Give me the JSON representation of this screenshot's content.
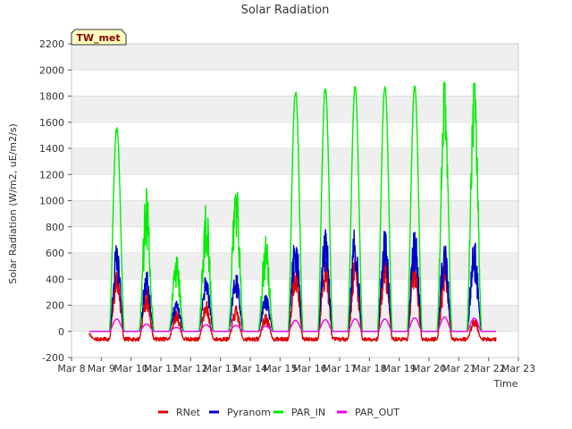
{
  "chart_data": {
    "type": "line",
    "title": "Solar Radiation",
    "xlabel": "Time",
    "ylabel": "Solar Radiation (W/m2, uE/m2/s)",
    "badge": "TW_met",
    "ylim": [
      -200,
      2200
    ],
    "xlim": [
      8,
      23
    ],
    "yticks": [
      -200,
      0,
      200,
      400,
      600,
      800,
      1000,
      1200,
      1400,
      1600,
      1800,
      2000,
      2200
    ],
    "xticks": [
      {
        "value": 8,
        "label": "Mar 8"
      },
      {
        "value": 9,
        "label": "Mar 9"
      },
      {
        "value": 10,
        "label": "Mar 10"
      },
      {
        "value": 11,
        "label": "Mar 11"
      },
      {
        "value": 12,
        "label": "Mar 12"
      },
      {
        "value": 13,
        "label": "Mar 13"
      },
      {
        "value": 14,
        "label": "Mar 14"
      },
      {
        "value": 15,
        "label": "Mar 15"
      },
      {
        "value": 16,
        "label": "Mar 16"
      },
      {
        "value": 17,
        "label": "Mar 17"
      },
      {
        "value": 18,
        "label": "Mar 18"
      },
      {
        "value": 19,
        "label": "Mar 19"
      },
      {
        "value": 20,
        "label": "Mar 20"
      },
      {
        "value": 21,
        "label": "Mar 21"
      },
      {
        "value": 22,
        "label": "Mar 22"
      },
      {
        "value": 23,
        "label": "Mar 23"
      }
    ],
    "grid": "horizontal bands",
    "legend_position": "bottom",
    "x_range": [
      8.6,
      22.25
    ],
    "series": [
      {
        "name": "RNet",
        "color": "#dd0000",
        "night": -60,
        "daily_peaks": [
          {
            "day": 9,
            "peak": 520
          },
          {
            "day": 10,
            "peak": 340
          },
          {
            "day": 11,
            "peak": 170
          },
          {
            "day": 12,
            "peak": 230
          },
          {
            "day": 13,
            "peak": 200
          },
          {
            "day": 14,
            "peak": 140
          },
          {
            "day": 15,
            "peak": 600
          },
          {
            "day": 16,
            "peak": 620
          },
          {
            "day": 17,
            "peak": 620
          },
          {
            "day": 18,
            "peak": 630
          },
          {
            "day": 19,
            "peak": 640
          },
          {
            "day": 20,
            "peak": 650
          },
          {
            "day": 21,
            "peak": 120
          },
          {
            "day": 22,
            "peak": 280
          }
        ]
      },
      {
        "name": "Pyranom",
        "color": "#0000cc",
        "night": 0,
        "daily_peaks": [
          {
            "day": 9,
            "peak": 680
          },
          {
            "day": 10,
            "peak": 470
          },
          {
            "day": 11,
            "peak": 240
          },
          {
            "day": 12,
            "peak": 430
          },
          {
            "day": 13,
            "peak": 470
          },
          {
            "day": 14,
            "peak": 300
          },
          {
            "day": 15,
            "peak": 810
          },
          {
            "day": 16,
            "peak": 810
          },
          {
            "day": 17,
            "peak": 815
          },
          {
            "day": 18,
            "peak": 815
          },
          {
            "day": 19,
            "peak": 820
          },
          {
            "day": 20,
            "peak": 825
          },
          {
            "day": 21,
            "peak": 820
          },
          {
            "day": 22,
            "peak": 900
          }
        ]
      },
      {
        "name": "PAR_IN",
        "color": "#00ee00",
        "night": 0,
        "daily_peaks": [
          {
            "day": 9,
            "peak": 1560
          },
          {
            "day": 10,
            "peak": 1130
          },
          {
            "day": 11,
            "peak": 600
          },
          {
            "day": 12,
            "peak": 990
          },
          {
            "day": 13,
            "peak": 1200
          },
          {
            "day": 14,
            "peak": 730
          },
          {
            "day": 15,
            "peak": 1850
          },
          {
            "day": 16,
            "peak": 1860
          },
          {
            "day": 17,
            "peak": 1875
          },
          {
            "day": 18,
            "peak": 1885
          },
          {
            "day": 19,
            "peak": 1880
          },
          {
            "day": 20,
            "peak": 1920
          },
          {
            "day": 21,
            "peak": 1910
          },
          {
            "day": 22,
            "peak": 2020
          }
        ]
      },
      {
        "name": "PAR_OUT",
        "color": "#ee00ee",
        "night": 0,
        "daily_peaks": [
          {
            "day": 9,
            "peak": 95
          },
          {
            "day": 10,
            "peak": 55
          },
          {
            "day": 11,
            "peak": 30
          },
          {
            "day": 12,
            "peak": 50
          },
          {
            "day": 13,
            "peak": 45
          },
          {
            "day": 14,
            "peak": 40
          },
          {
            "day": 15,
            "peak": 85
          },
          {
            "day": 16,
            "peak": 90
          },
          {
            "day": 17,
            "peak": 95
          },
          {
            "day": 18,
            "peak": 95
          },
          {
            "day": 19,
            "peak": 105
          },
          {
            "day": 20,
            "peak": 110
          },
          {
            "day": 21,
            "peak": 100
          },
          {
            "day": 22,
            "peak": 110
          }
        ]
      }
    ]
  }
}
